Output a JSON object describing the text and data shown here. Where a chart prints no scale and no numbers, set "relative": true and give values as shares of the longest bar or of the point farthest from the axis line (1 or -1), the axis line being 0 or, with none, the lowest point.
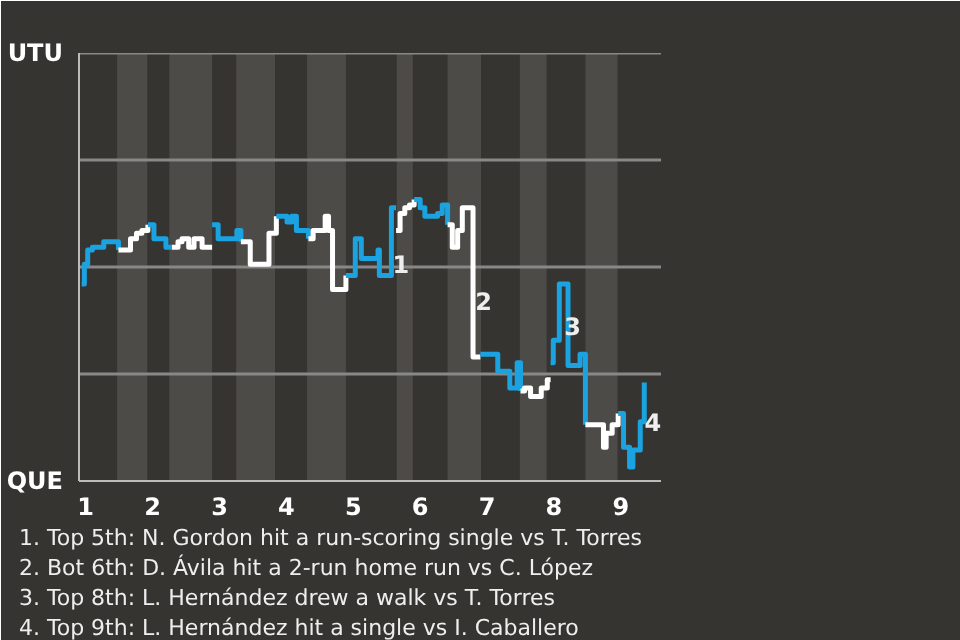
{
  "chart_data": {
    "type": "step",
    "relative": true,
    "xlim": [
      0.9,
      9.6
    ],
    "xticks": [
      1,
      2,
      3,
      4,
      5,
      6,
      7,
      8,
      9
    ],
    "line_style": "solid",
    "marker": "none",
    "ref_lines": [
      {
        "axis": "y",
        "value": 0.38,
        "color": "#888888"
      },
      {
        "axis": "y",
        "value": 0.76,
        "color": "#888888"
      },
      {
        "axis": "y",
        "value": 1.14,
        "color": "#888888"
      },
      {
        "axis": "y",
        "value": 1.52,
        "color": "#888888"
      }
    ],
    "bands": [
      {
        "axis": "x",
        "from": 1.47,
        "to": 1.92,
        "color": "#4d4b48"
      },
      {
        "axis": "x",
        "from": 2.25,
        "to": 2.89,
        "color": "#4d4b48"
      },
      {
        "axis": "x",
        "from": 3.25,
        "to": 3.83,
        "color": "#4d4b48"
      },
      {
        "axis": "x",
        "from": 4.31,
        "to": 4.89,
        "color": "#4d4b48"
      },
      {
        "axis": "x",
        "from": 5.65,
        "to": 5.89,
        "color": "#4d4b48"
      },
      {
        "axis": "x",
        "from": 6.41,
        "to": 6.91,
        "color": "#4d4b48"
      },
      {
        "axis": "x",
        "from": 7.49,
        "to": 7.89,
        "color": "#4d4b48"
      },
      {
        "axis": "x",
        "from": 8.47,
        "to": 8.95,
        "color": "#4d4b48"
      }
    ],
    "series": [
      {
        "color": "#1aa3e0",
        "x": [
          0.94,
          0.98,
          1.03,
          1.1,
          1.27,
          1.45,
          1.49
        ],
        "values": [
          0.7,
          0.77,
          0.82,
          0.83,
          0.85,
          0.85,
          0.82
        ]
      },
      {
        "color": "#ffffff",
        "x": [
          1.49,
          1.62,
          1.67,
          1.76,
          1.84,
          1.93
        ],
        "values": [
          0.82,
          0.82,
          0.86,
          0.88,
          0.89,
          0.91
        ]
      },
      {
        "color": "#1aa3e0",
        "x": [
          1.93,
          2.02,
          2.2,
          2.29
        ],
        "values": [
          0.91,
          0.86,
          0.83,
          0.83
        ]
      },
      {
        "color": "#ffffff",
        "x": [
          2.29,
          2.38,
          2.44,
          2.54,
          2.62,
          2.74,
          2.89
        ],
        "values": [
          0.83,
          0.85,
          0.86,
          0.83,
          0.86,
          0.83,
          0.83
        ]
      },
      {
        "color": "#1aa3e0",
        "x": [
          2.89,
          2.98,
          3.18,
          3.26,
          3.32
        ],
        "values": [
          0.91,
          0.86,
          0.86,
          0.89,
          0.85
        ]
      },
      {
        "color": "#ffffff",
        "x": [
          3.32,
          3.46,
          3.67,
          3.74,
          3.85
        ],
        "values": [
          0.85,
          0.77,
          0.77,
          0.88,
          0.94
        ]
      },
      {
        "color": "#1aa3e0",
        "x": [
          3.85,
          4.01,
          4.08,
          4.15,
          4.22,
          4.33
        ],
        "values": [
          0.94,
          0.92,
          0.94,
          0.89,
          0.89,
          0.86
        ]
      },
      {
        "color": "#ffffff",
        "x": [
          4.33,
          4.4,
          4.52,
          4.58,
          4.63,
          4.69,
          4.86,
          4.89
        ],
        "values": [
          0.86,
          0.89,
          0.89,
          0.94,
          0.89,
          0.68,
          0.68,
          0.73
        ]
      },
      {
        "color": "#1aa3e0",
        "x": [
          4.89,
          5.03,
          5.12,
          5.32,
          5.37,
          5.39,
          5.55,
          5.57,
          5.64
        ],
        "values": [
          0.73,
          0.86,
          0.79,
          0.79,
          0.82,
          0.73,
          0.73,
          0.97,
          0.97
        ]
      },
      {
        "color": "#ffffff",
        "x": [
          5.64,
          5.7,
          5.77,
          5.84,
          5.91
        ],
        "values": [
          0.89,
          0.95,
          0.97,
          0.98,
          1
        ]
      },
      {
        "color": "#1aa3e0",
        "x": [
          5.91,
          6.0,
          6.07,
          6.17,
          6.26,
          6.33,
          6.41
        ],
        "values": [
          1,
          0.97,
          0.94,
          0.94,
          0.95,
          0.98,
          0.91
        ]
      },
      {
        "color": "#ffffff",
        "x": [
          6.41,
          6.48,
          6.51,
          6.56,
          6.63,
          6.79,
          6.9
        ],
        "values": [
          0.91,
          0.83,
          0.83,
          0.89,
          0.97,
          0.44,
          0.44
        ]
      },
      {
        "color": "#1aa3e0",
        "x": [
          6.9,
          7.14,
          7.16,
          7.32,
          7.34,
          7.41,
          7.45,
          7.5
        ],
        "values": [
          0.45,
          0.45,
          0.39,
          0.39,
          0.33,
          0.33,
          0.42,
          0.32
        ]
      },
      {
        "color": "#ffffff",
        "x": [
          7.5,
          7.56,
          7.65,
          7.77,
          7.81,
          7.9,
          7.95
        ],
        "values": [
          0.32,
          0.33,
          0.3,
          0.3,
          0.33,
          0.36,
          0.36
        ]
      },
      {
        "color": "#1aa3e0",
        "x": [
          7.95,
          7.99,
          8.06,
          8.08,
          8.18,
          8.21,
          8.34,
          8.39,
          8.45,
          8.47
        ],
        "values": [
          0.42,
          0.5,
          0.5,
          0.7,
          0.7,
          0.41,
          0.41,
          0.45,
          0.45,
          0.2
        ]
      },
      {
        "color": "#ffffff",
        "x": [
          8.47,
          8.65,
          8.74,
          8.78,
          8.87,
          8.96
        ],
        "values": [
          0.2,
          0.2,
          0.12,
          0.17,
          0.2,
          0.24
        ]
      },
      {
        "color": "#1aa3e0",
        "x": [
          8.96,
          9.04,
          9.13,
          9.18,
          9.26,
          9.29,
          9.35
        ],
        "values": [
          0.24,
          0.12,
          0.05,
          0.11,
          0.11,
          0.21,
          0.35
        ]
      }
    ],
    "annotations": [
      "UTU",
      "QUE",
      {
        "text": "1",
        "x": 5.71,
        "y": 0.77
      },
      {
        "text": "2",
        "x": 6.95,
        "y": 0.64
      },
      {
        "text": "3",
        "x": 8.28,
        "y": 0.55
      },
      {
        "text": "4",
        "x": 9.48,
        "y": 0.21
      },
      "1. Top 5th: N. Gordon hit a run-scoring single vs T. Torres",
      "2. Bot 6th: D. Ávila hit a 2-run home run vs C. López",
      "3. Top 8th: L. Hernández drew a walk vs T. Torres",
      "4. Top 9th: L. Hernández hit a single vs I. Caballero"
    ]
  }
}
